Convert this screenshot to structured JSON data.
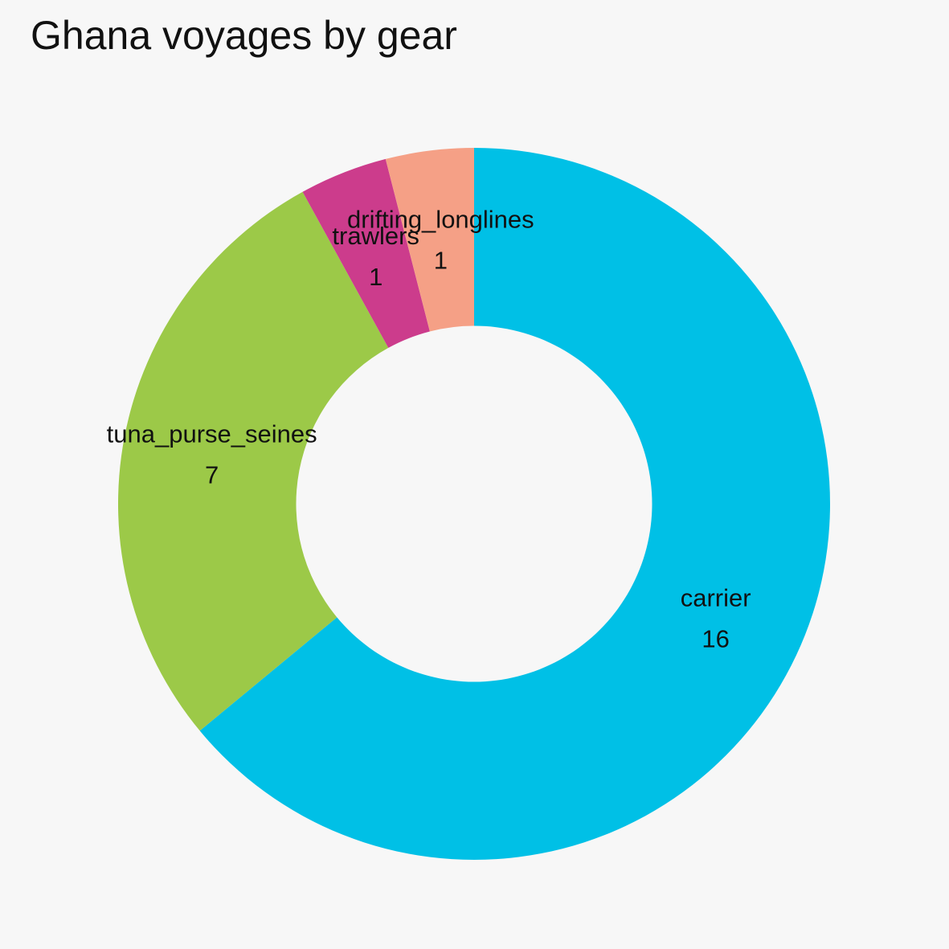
{
  "chart_data": {
    "type": "pie",
    "title": "Ghana voyages by gear",
    "hole": 0.5,
    "slices": [
      {
        "label": "carrier",
        "value": 16,
        "color": "#00c0e6"
      },
      {
        "label": "tuna_purse_seines",
        "value": 7,
        "color": "#9cc948"
      },
      {
        "label": "trawlers",
        "value": 1,
        "color": "#cc3c8c"
      },
      {
        "label": "drifting_longlines",
        "value": 1,
        "color": "#f5a086"
      }
    ]
  }
}
